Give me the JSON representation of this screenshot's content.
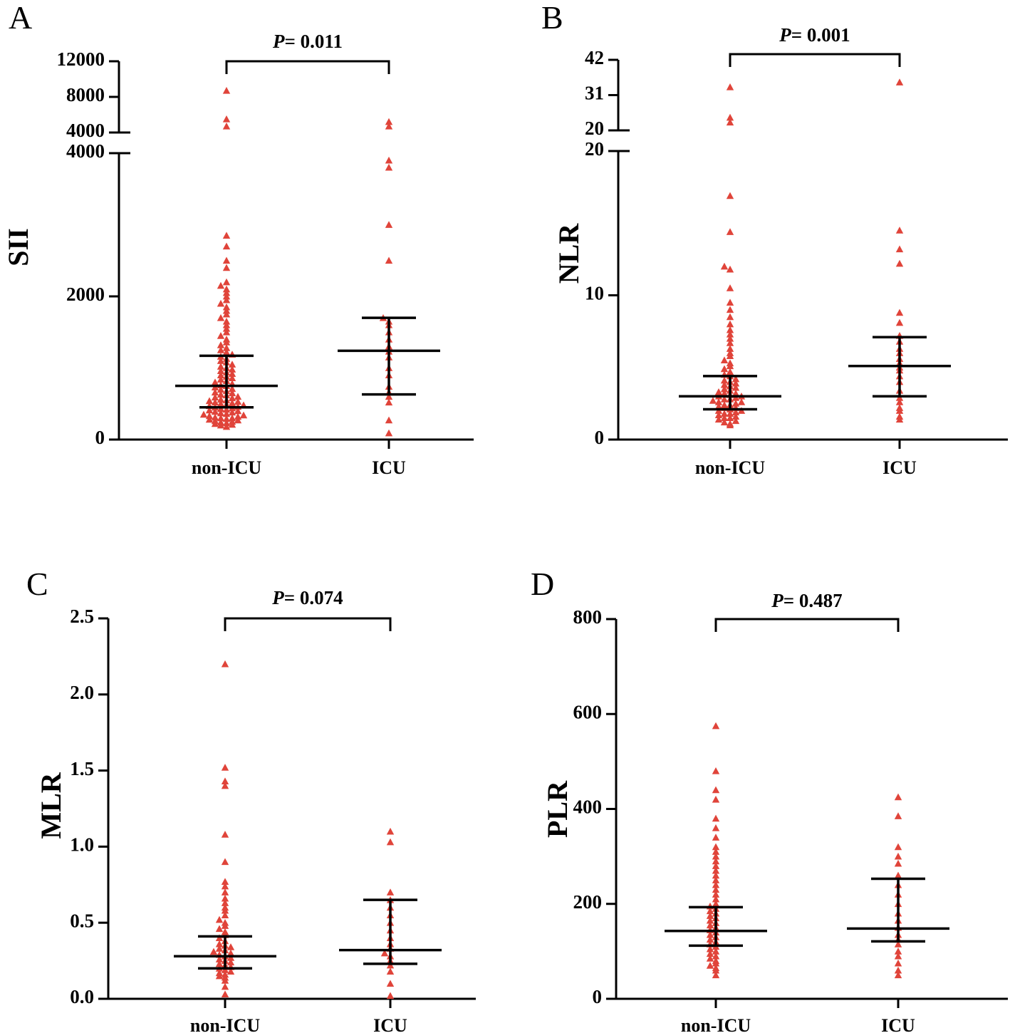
{
  "colors": {
    "points": "#e0443a",
    "axis": "#000000"
  },
  "chart_data": [
    {
      "panel": "A",
      "type": "scatter",
      "subtype": "dot-plot-with-median-iqr",
      "ylabel": "SII",
      "categories": [
        "non-ICU",
        "ICU"
      ],
      "p_label": "P",
      "p_value_text": "= 0.011",
      "y_axis_break": {
        "lower_range": [
          0,
          4000
        ],
        "upper_range": [
          4000,
          12000
        ],
        "lower_ticks": [
          "0",
          "2000",
          "4000"
        ],
        "upper_ticks": [
          "4000",
          "8000",
          "12000"
        ]
      },
      "groups": [
        {
          "name": "non-ICU",
          "median": 750,
          "q1": 450,
          "q3": 1170,
          "values": [
            180,
            200,
            210,
            220,
            230,
            240,
            250,
            260,
            270,
            280,
            290,
            300,
            300,
            310,
            320,
            330,
            340,
            350,
            360,
            370,
            380,
            390,
            400,
            410,
            420,
            430,
            440,
            450,
            460,
            470,
            480,
            490,
            500,
            510,
            520,
            530,
            540,
            550,
            560,
            580,
            590,
            600,
            620,
            630,
            650,
            660,
            680,
            700,
            710,
            730,
            750,
            760,
            780,
            800,
            820,
            840,
            860,
            880,
            900,
            920,
            940,
            960,
            980,
            1000,
            1020,
            1050,
            1080,
            1100,
            1130,
            1160,
            1190,
            1220,
            1250,
            1280,
            1320,
            1360,
            1400,
            1450,
            1500,
            1550,
            1600,
            1650,
            1700,
            1750,
            1800,
            1850,
            1900,
            1950,
            2000,
            2050,
            2100,
            2150,
            2200,
            2400,
            2500,
            2700,
            2850,
            4700,
            5500,
            8700
          ]
        },
        {
          "name": "ICU",
          "median": 1240,
          "q1": 630,
          "q3": 1700,
          "values": [
            90,
            270,
            520,
            600,
            660,
            740,
            900,
            1000,
            1150,
            1230,
            1300,
            1400,
            1500,
            1600,
            1650,
            1700,
            2500,
            3000,
            3800,
            3900,
            4700,
            5200
          ]
        }
      ]
    },
    {
      "panel": "B",
      "type": "scatter",
      "subtype": "dot-plot-with-median-iqr",
      "ylabel": "NLR",
      "categories": [
        "non-ICU",
        "ICU"
      ],
      "p_label": "P",
      "p_value_text": "= 0.001",
      "y_axis_break": {
        "lower_range": [
          0,
          20
        ],
        "upper_range": [
          20,
          42
        ],
        "lower_ticks": [
          "0",
          "10",
          "20"
        ],
        "upper_ticks": [
          "20",
          "31",
          "42"
        ]
      },
      "groups": [
        {
          "name": "non-ICU",
          "median": 3.0,
          "q1": 2.1,
          "q3": 4.4,
          "values": [
            1.0,
            1.1,
            1.2,
            1.3,
            1.4,
            1.5,
            1.5,
            1.6,
            1.7,
            1.8,
            1.8,
            1.9,
            2.0,
            2.0,
            2.1,
            2.2,
            2.2,
            2.3,
            2.4,
            2.4,
            2.5,
            2.6,
            2.6,
            2.7,
            2.8,
            2.8,
            2.9,
            3.0,
            3.0,
            3.1,
            3.2,
            3.2,
            3.3,
            3.4,
            3.5,
            3.6,
            3.7,
            3.8,
            3.9,
            4.0,
            4.1,
            4.2,
            4.4,
            4.5,
            4.7,
            4.9,
            5.1,
            5.3,
            5.5,
            5.8,
            6.0,
            6.3,
            6.7,
            7.0,
            7.3,
            7.6,
            8.0,
            8.5,
            9.0,
            9.5,
            10.5,
            11.8,
            12.0,
            14.4,
            16.9,
            22.5,
            24.0,
            33.5
          ]
        },
        {
          "name": "ICU",
          "median": 5.1,
          "q1": 3.0,
          "q3": 7.1,
          "values": [
            1.4,
            1.6,
            2.0,
            2.2,
            2.6,
            2.9,
            3.4,
            4.0,
            4.4,
            4.8,
            5.0,
            5.3,
            5.6,
            6.0,
            6.3,
            6.8,
            7.2,
            8.1,
            8.8,
            12.2,
            13.2,
            14.5,
            35.0
          ]
        }
      ]
    },
    {
      "panel": "C",
      "type": "scatter",
      "subtype": "dot-plot-with-median-iqr",
      "ylabel": "MLR",
      "categories": [
        "non-ICU",
        "ICU"
      ],
      "p_label": "P",
      "p_value_text": "= 0.074",
      "ylim": [
        0,
        2.5
      ],
      "ticks": [
        "0.0",
        "0.5",
        "1.0",
        "1.5",
        "2.0",
        "2.5"
      ],
      "groups": [
        {
          "name": "non-ICU",
          "median": 0.28,
          "q1": 0.2,
          "q3": 0.41,
          "values": [
            0.03,
            0.08,
            0.12,
            0.14,
            0.15,
            0.16,
            0.17,
            0.18,
            0.19,
            0.2,
            0.21,
            0.22,
            0.23,
            0.24,
            0.25,
            0.26,
            0.27,
            0.28,
            0.29,
            0.3,
            0.31,
            0.32,
            0.33,
            0.34,
            0.35,
            0.36,
            0.38,
            0.4,
            0.42,
            0.44,
            0.46,
            0.48,
            0.5,
            0.52,
            0.55,
            0.58,
            0.6,
            0.63,
            0.66,
            0.7,
            0.74,
            0.77,
            0.9,
            1.08,
            1.4,
            1.43,
            1.52,
            2.2
          ]
        },
        {
          "name": "ICU",
          "median": 0.32,
          "q1": 0.23,
          "q3": 0.65,
          "values": [
            0.02,
            0.1,
            0.18,
            0.22,
            0.25,
            0.28,
            0.3,
            0.33,
            0.36,
            0.4,
            0.45,
            0.5,
            0.55,
            0.6,
            0.65,
            0.7,
            1.03,
            1.1
          ]
        }
      ]
    },
    {
      "panel": "D",
      "type": "scatter",
      "subtype": "dot-plot-with-median-iqr",
      "ylabel": "PLR",
      "categories": [
        "non-ICU",
        "ICU"
      ],
      "p_label": "P",
      "p_value_text": "= 0.487",
      "ylim": [
        0,
        800
      ],
      "ticks": [
        "0",
        "200",
        "400",
        "600",
        "800"
      ],
      "groups": [
        {
          "name": "non-ICU",
          "median": 143,
          "q1": 112,
          "q3": 193,
          "values": [
            50,
            60,
            65,
            70,
            75,
            80,
            85,
            90,
            95,
            100,
            105,
            110,
            115,
            120,
            125,
            130,
            135,
            140,
            145,
            150,
            155,
            160,
            165,
            170,
            175,
            180,
            185,
            190,
            195,
            200,
            210,
            220,
            230,
            240,
            250,
            260,
            270,
            280,
            290,
            300,
            310,
            320,
            340,
            360,
            380,
            420,
            440,
            480,
            575
          ]
        },
        {
          "name": "ICU",
          "median": 148,
          "q1": 121,
          "q3": 253,
          "values": [
            50,
            60,
            75,
            90,
            100,
            115,
            125,
            135,
            150,
            165,
            180,
            200,
            220,
            240,
            260,
            285,
            300,
            320,
            385,
            425
          ]
        }
      ]
    }
  ]
}
